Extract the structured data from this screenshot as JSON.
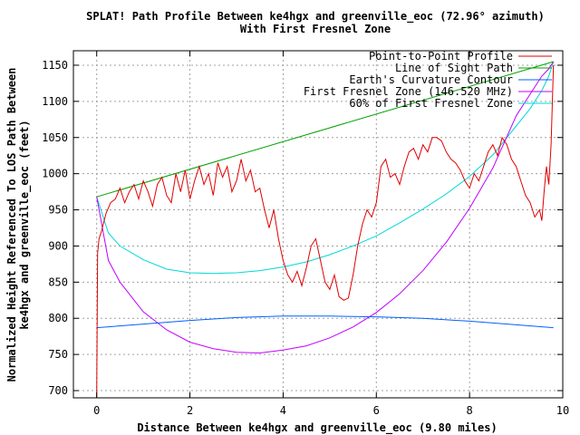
{
  "chart_data": {
    "type": "line",
    "title": "SPLAT! Path Profile Between ke4hgx and greenville_eoc (72.96° azimuth)",
    "subtitle": "With First Fresnel Zone",
    "xlabel": "Distance Between ke4hgx and greenville_eoc (9.80 miles)",
    "ylabel_line1": "Normalized Height Referenced To LOS Path Between",
    "ylabel_line2": "ke4hgx and greenville_eoc (feet)",
    "xlim": [
      -0.5,
      10
    ],
    "ylim": [
      690,
      1170
    ],
    "xticks": [
      0,
      2,
      4,
      6,
      8,
      10
    ],
    "yticks": [
      700,
      750,
      800,
      850,
      900,
      950,
      1000,
      1050,
      1100,
      1150
    ],
    "grid": true,
    "legend_position": "top-right",
    "series": [
      {
        "name": "Point-to-Point Profile",
        "color": "#e00000",
        "x": [
          0,
          0.02,
          0.05,
          0.1,
          0.2,
          0.3,
          0.4,
          0.5,
          0.6,
          0.7,
          0.8,
          0.9,
          1.0,
          1.1,
          1.2,
          1.3,
          1.4,
          1.5,
          1.6,
          1.7,
          1.8,
          1.9,
          2.0,
          2.1,
          2.2,
          2.3,
          2.4,
          2.5,
          2.6,
          2.7,
          2.8,
          2.9,
          3.0,
          3.1,
          3.2,
          3.3,
          3.4,
          3.5,
          3.6,
          3.7,
          3.8,
          3.9,
          4.0,
          4.1,
          4.2,
          4.3,
          4.4,
          4.5,
          4.6,
          4.7,
          4.8,
          4.9,
          5.0,
          5.1,
          5.2,
          5.3,
          5.4,
          5.5,
          5.6,
          5.7,
          5.8,
          5.9,
          6.0,
          6.1,
          6.2,
          6.3,
          6.4,
          6.5,
          6.6,
          6.7,
          6.8,
          6.9,
          7.0,
          7.1,
          7.2,
          7.3,
          7.4,
          7.5,
          7.6,
          7.7,
          7.8,
          7.9,
          8.0,
          8.1,
          8.2,
          8.3,
          8.4,
          8.5,
          8.6,
          8.7,
          8.8,
          8.9,
          9.0,
          9.1,
          9.2,
          9.3,
          9.4,
          9.5,
          9.55,
          9.6,
          9.65,
          9.7,
          9.75,
          9.8
        ],
        "y": [
          690,
          890,
          910,
          920,
          945,
          960,
          965,
          980,
          960,
          975,
          985,
          965,
          990,
          975,
          955,
          985,
          995,
          970,
          960,
          1000,
          975,
          1005,
          965,
          990,
          1010,
          985,
          1000,
          970,
          1015,
          995,
          1010,
          975,
          990,
          1020,
          990,
          1005,
          975,
          980,
          950,
          925,
          950,
          910,
          880,
          860,
          850,
          865,
          845,
          870,
          900,
          910,
          880,
          850,
          840,
          860,
          830,
          825,
          828,
          860,
          900,
          930,
          950,
          940,
          960,
          1010,
          1020,
          995,
          1000,
          985,
          1010,
          1030,
          1035,
          1020,
          1040,
          1030,
          1050,
          1050,
          1045,
          1030,
          1020,
          1015,
          1005,
          990,
          980,
          1000,
          990,
          1010,
          1030,
          1040,
          1025,
          1050,
          1040,
          1020,
          1010,
          990,
          970,
          960,
          940,
          950,
          935,
          975,
          1010,
          985,
          1040,
          1150
        ]
      },
      {
        "name": "Line of Sight Path",
        "color": "#00a000",
        "x": [
          0,
          9.8
        ],
        "y": [
          968,
          1155
        ]
      },
      {
        "name": "Earth's Curvature Contour",
        "color": "#0060ff",
        "x": [
          0,
          1,
          2,
          3,
          4,
          5,
          6,
          7,
          8,
          9,
          9.8
        ],
        "y": [
          787,
          792,
          797,
          801,
          803,
          803,
          802,
          800,
          796,
          791,
          787
        ]
      },
      {
        "name": "First Fresnel Zone (146.520 MHz)",
        "color": "#c000ff",
        "x": [
          0,
          0.25,
          0.5,
          1,
          1.5,
          2,
          2.5,
          3,
          3.5,
          4,
          4.5,
          5,
          5.5,
          6,
          6.5,
          7,
          7.5,
          8,
          8.5,
          9,
          9.3,
          9.55,
          9.7,
          9.8
        ],
        "y": [
          968,
          880,
          850,
          809,
          784,
          767,
          758,
          753,
          752,
          756,
          762,
          773,
          788,
          808,
          834,
          866,
          905,
          952,
          1008,
          1080,
          1110,
          1135,
          1145,
          1155
        ]
      },
      {
        "name": "60% of First Fresnel Zone",
        "color": "#00d8d8",
        "x": [
          0,
          0.25,
          0.5,
          1,
          1.5,
          2,
          2.5,
          3,
          3.5,
          4,
          4.5,
          5,
          5.5,
          6,
          6.5,
          7,
          7.5,
          8,
          8.5,
          9,
          9.3,
          9.55,
          9.7,
          9.8
        ],
        "y": [
          968,
          918,
          900,
          881,
          868,
          863,
          862,
          863,
          866,
          871,
          878,
          888,
          900,
          914,
          932,
          951,
          972,
          996,
          1026,
          1066,
          1090,
          1115,
          1135,
          1155
        ]
      }
    ]
  }
}
